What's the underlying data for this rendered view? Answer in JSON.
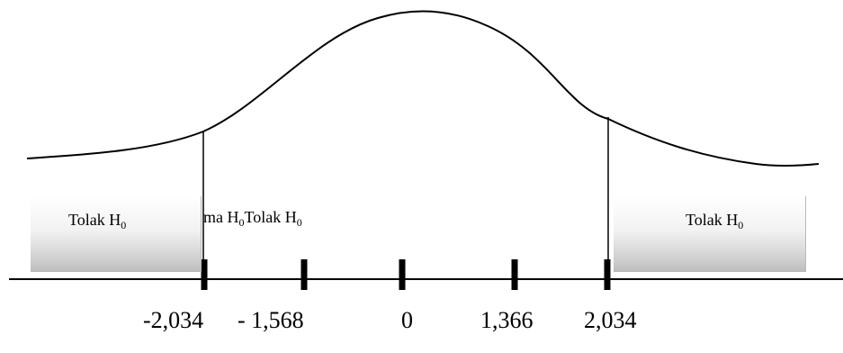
{
  "regions": {
    "left": {
      "text": "Tolak H",
      "subscript": "0"
    },
    "middle_a": {
      "text": "ma H",
      "subscript": "0"
    },
    "middle_b": {
      "text": "Tolak H",
      "subscript": "0"
    },
    "right": {
      "text": "Tolak H",
      "subscript": "0"
    }
  },
  "axis_labels": [
    "-2,034",
    "-  1,568",
    "0",
    "1,366",
    "2,034"
  ],
  "colors": {
    "line": "#000000",
    "region_top": "#ffffff",
    "region_bottom": "#bdbdbd"
  }
}
